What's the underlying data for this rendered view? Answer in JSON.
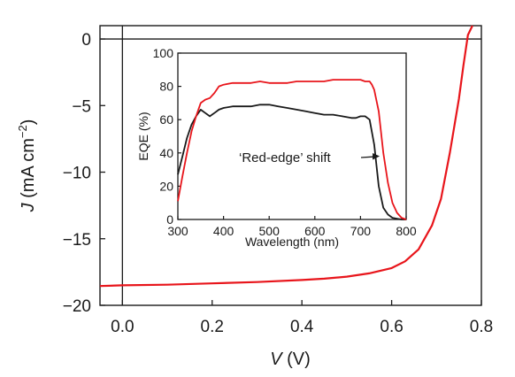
{
  "chart_data": [
    {
      "type": "line",
      "xlim": [
        -0.05,
        0.8
      ],
      "ylim": [
        -20,
        1
      ],
      "xticks": [
        0.0,
        0.2,
        0.4,
        0.6,
        0.8
      ],
      "xtick_labels": [
        "0.0",
        "0.2",
        "0.4",
        "0.6",
        "0.8"
      ],
      "yticks": [
        0,
        -5,
        -10,
        -15,
        -20
      ],
      "ytick_labels": [
        "0",
        "−5",
        "−10",
        "−15",
        "−20"
      ],
      "xlabel": {
        "var": "V",
        "unit": " (V)"
      },
      "ylabel": {
        "var": "J",
        "unit": " (mA cm",
        "sup": "−2",
        "close": ")"
      },
      "reference_lines": {
        "x": 0,
        "y": 0
      },
      "series": [
        {
          "color": "#e8151b",
          "x": [
            -0.05,
            0.0,
            0.1,
            0.2,
            0.3,
            0.4,
            0.45,
            0.5,
            0.55,
            0.6,
            0.63,
            0.66,
            0.69,
            0.71,
            0.73,
            0.75,
            0.76,
            0.77,
            0.78
          ],
          "y": [
            -18.55,
            -18.5,
            -18.45,
            -18.35,
            -18.25,
            -18.1,
            -18.0,
            -17.85,
            -17.6,
            -17.2,
            -16.7,
            -15.8,
            -14.0,
            -12.0,
            -8.5,
            -4.5,
            -2.0,
            0.3,
            1.0
          ]
        }
      ]
    },
    {
      "type": "line",
      "xlim": [
        300,
        800
      ],
      "ylim": [
        0,
        100
      ],
      "xticks": [
        300,
        400,
        500,
        600,
        700,
        800
      ],
      "yticks": [
        0,
        20,
        40,
        60,
        80,
        100
      ],
      "xlabel": "Wavelength (nm)",
      "ylabel": "EQE (%)",
      "annotation": {
        "text": "‘Red-edge’ shift",
        "arrow_to": [
          742,
          38
        ]
      },
      "series": [
        {
          "color": "#1a1a1a",
          "x": [
            300,
            310,
            320,
            330,
            340,
            350,
            360,
            370,
            380,
            390,
            400,
            420,
            440,
            460,
            480,
            500,
            520,
            540,
            560,
            580,
            600,
            620,
            640,
            660,
            680,
            690,
            700,
            710,
            720,
            730,
            740,
            750,
            760,
            770,
            780,
            790,
            800
          ],
          "y": [
            27,
            38,
            49,
            57,
            62,
            66,
            64,
            62,
            64,
            66,
            67,
            68,
            68,
            68,
            69,
            69,
            68,
            67,
            66,
            65,
            64,
            63,
            63,
            62,
            61,
            61,
            62,
            62,
            60,
            45,
            20,
            7,
            3,
            1,
            0.5,
            0,
            0
          ]
        },
        {
          "color": "#e8151b",
          "x": [
            300,
            310,
            320,
            330,
            340,
            350,
            360,
            370,
            380,
            390,
            400,
            420,
            440,
            460,
            480,
            500,
            520,
            540,
            560,
            580,
            600,
            620,
            640,
            660,
            680,
            700,
            710,
            720,
            725,
            730,
            740,
            750,
            760,
            770,
            780,
            790,
            800
          ],
          "y": [
            11,
            26,
            40,
            53,
            62,
            70,
            72,
            73,
            76,
            80,
            81,
            82,
            82,
            82,
            83,
            82,
            82,
            82,
            83,
            83,
            83,
            83,
            84,
            84,
            84,
            84,
            83,
            83,
            81,
            78,
            65,
            40,
            22,
            10,
            4,
            1,
            0
          ]
        }
      ]
    }
  ]
}
